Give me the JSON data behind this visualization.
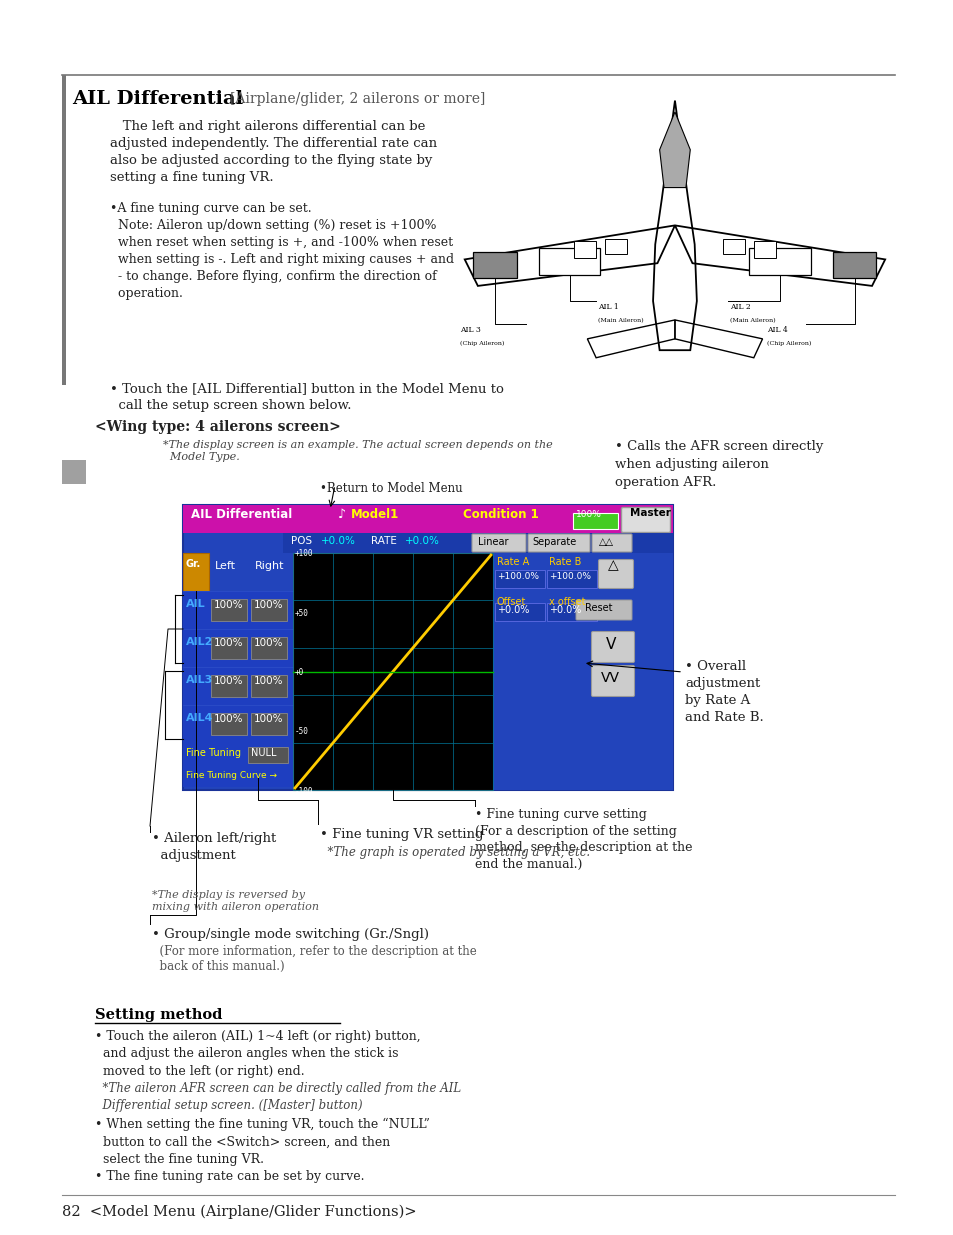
{
  "page_bg": "#ffffff",
  "title_text": "AIL Differential",
  "subtitle_text": "[Airplane/glider, 2 ailerons or more]",
  "body_text1": "   The left and right ailerons differential can be\nadjusted independently. The differential rate can\nalso be adjusted according to the flying state by\nsetting a fine tuning VR.",
  "bullet1": "•A fine tuning curve can be set.\n  Note: Aileron up/down setting (%) reset is +100%\n  when reset when setting is +, and -100% when reset\n  when setting is -. Left and right mixing causes + and\n  - to change. Before flying, confirm the direction of\n  operation.",
  "touch_text": "• Touch the [AIL Differential] button in the Model Menu to\n  call the setup screen shown below.",
  "wing_type_text": "<Wing type: 4 ailerons screen>",
  "note_screen": "*The display screen is an example. The actual screen depends on the\n  Model Type.",
  "return_label": "•Return to Model Menu",
  "afr_text": "• Calls the AFR screen directly\nwhen adjusting aileron\noperation AFR.",
  "aileron_label": "• Aileron left/right\n  adjustment",
  "fine_tuning_vr": "• Fine tuning VR setting",
  "fine_tuning_vr_note": "  *The graph is operated by setting a VR, etc.",
  "fine_curve_label": "• Fine tuning curve setting\n(For a description of the setting\nmethod, see the description at the\nend the manual.)",
  "overall_label": "• Overall\nadjustment\nby Rate A\nand Rate B.",
  "reversed_note": "*The display is reversed by\nmixing with aileron operation",
  "group_single_main": "• Group/single mode switching (Gr./Sngl)",
  "group_single_note": "  (For more information, refer to the description at the\n  back of this manual.)",
  "setting_method_title": "Setting method",
  "setting_line1": "• Touch the aileron (AIL) 1~4 left (or right) button,\n  and adjust the aileron angles when the stick is\n  moved to the left (or right) end.",
  "setting_line2": "  *The aileron AFR screen can be directly called from the AIL\n  Differential setup screen. ([Master] button)",
  "setting_line3": "• When setting the fine tuning VR, touch the “NULL”\n  button to call the <Switch> screen, and then\n  select the fine tuning VR.",
  "setting_line4": "• The fine tuning rate can be set by curve.",
  "footer_text": "82  <Model Menu (Airplane/Glider Functions)>",
  "header_line_color": "#808080",
  "left_bar_color": "#808080"
}
